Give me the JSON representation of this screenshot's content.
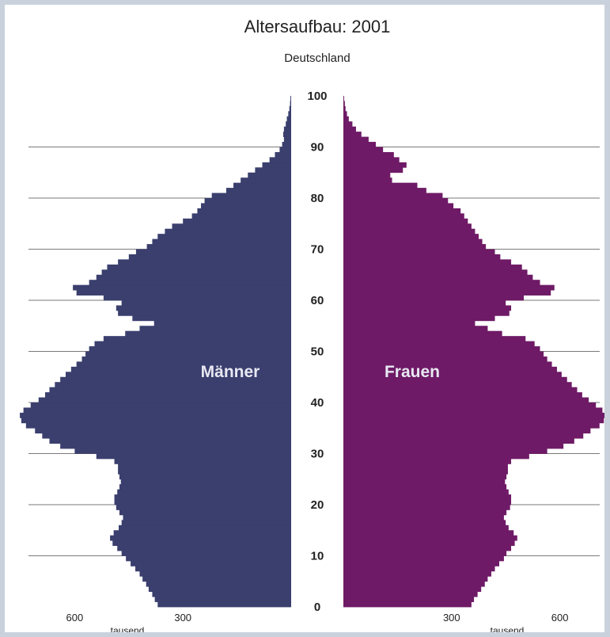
{
  "chart_data": {
    "type": "bar",
    "orientation": "horizontal",
    "title": "Altersaufbau: 2001",
    "subtitle": "Deutschland",
    "y_ticks": [
      0,
      10,
      20,
      30,
      40,
      50,
      60,
      70,
      80,
      90,
      100
    ],
    "x_ticks_left": [
      "600",
      "300"
    ],
    "x_ticks_right": [
      "300",
      "600"
    ],
    "x_unit": "tausend",
    "xlim": [
      0,
      750
    ],
    "ylim": [
      0,
      100
    ],
    "grid": "horizontal",
    "age": [
      0,
      1,
      2,
      3,
      4,
      5,
      6,
      7,
      8,
      9,
      10,
      11,
      12,
      13,
      14,
      15,
      16,
      17,
      18,
      19,
      20,
      21,
      22,
      23,
      24,
      25,
      26,
      27,
      28,
      29,
      30,
      31,
      32,
      33,
      34,
      35,
      36,
      37,
      38,
      39,
      40,
      41,
      42,
      43,
      44,
      45,
      46,
      47,
      48,
      49,
      50,
      51,
      52,
      53,
      54,
      55,
      56,
      57,
      58,
      59,
      60,
      61,
      62,
      63,
      64,
      65,
      66,
      67,
      68,
      69,
      70,
      71,
      72,
      73,
      74,
      75,
      76,
      77,
      78,
      79,
      80,
      81,
      82,
      83,
      84,
      85,
      86,
      87,
      88,
      89,
      90,
      91,
      92,
      93,
      94,
      95,
      96,
      97,
      98,
      99
    ],
    "series": [
      {
        "name": "Männer",
        "color": "#3a3f6e",
        "values": [
          370,
          378,
          385,
          395,
          402,
          412,
          420,
          432,
          445,
          458,
          470,
          482,
          495,
          502,
          492,
          478,
          470,
          466,
          476,
          485,
          490,
          490,
          482,
          476,
          472,
          476,
          480,
          480,
          490,
          540,
          600,
          640,
          670,
          690,
          710,
          735,
          748,
          752,
          742,
          722,
          700,
          682,
          670,
          655,
          640,
          625,
          610,
          595,
          580,
          570,
          560,
          545,
          520,
          460,
          420,
          380,
          440,
          480,
          485,
          470,
          520,
          595,
          605,
          560,
          540,
          525,
          510,
          480,
          450,
          430,
          400,
          385,
          370,
          350,
          330,
          300,
          275,
          260,
          250,
          240,
          220,
          180,
          160,
          140,
          120,
          100,
          80,
          60,
          45,
          32,
          25,
          20,
          22,
          20,
          15,
          12,
          8,
          5,
          3,
          2
        ]
      },
      {
        "name": "Frauen",
        "color": "#6e1a66",
        "values": [
          355,
          362,
          372,
          382,
          392,
          400,
          410,
          420,
          432,
          445,
          452,
          465,
          475,
          482,
          472,
          458,
          450,
          445,
          452,
          462,
          465,
          465,
          458,
          452,
          448,
          452,
          456,
          456,
          465,
          515,
          565,
          610,
          640,
          665,
          685,
          710,
          722,
          724,
          718,
          700,
          680,
          662,
          648,
          633,
          620,
          605,
          592,
          578,
          565,
          555,
          545,
          530,
          505,
          440,
          400,
          365,
          420,
          460,
          465,
          450,
          500,
          575,
          585,
          545,
          525,
          510,
          495,
          465,
          435,
          420,
          395,
          385,
          375,
          365,
          355,
          345,
          335,
          325,
          305,
          290,
          275,
          230,
          205,
          135,
          130,
          165,
          175,
          155,
          140,
          110,
          90,
          70,
          50,
          35,
          25,
          15,
          10,
          6,
          4,
          2
        ]
      }
    ]
  }
}
